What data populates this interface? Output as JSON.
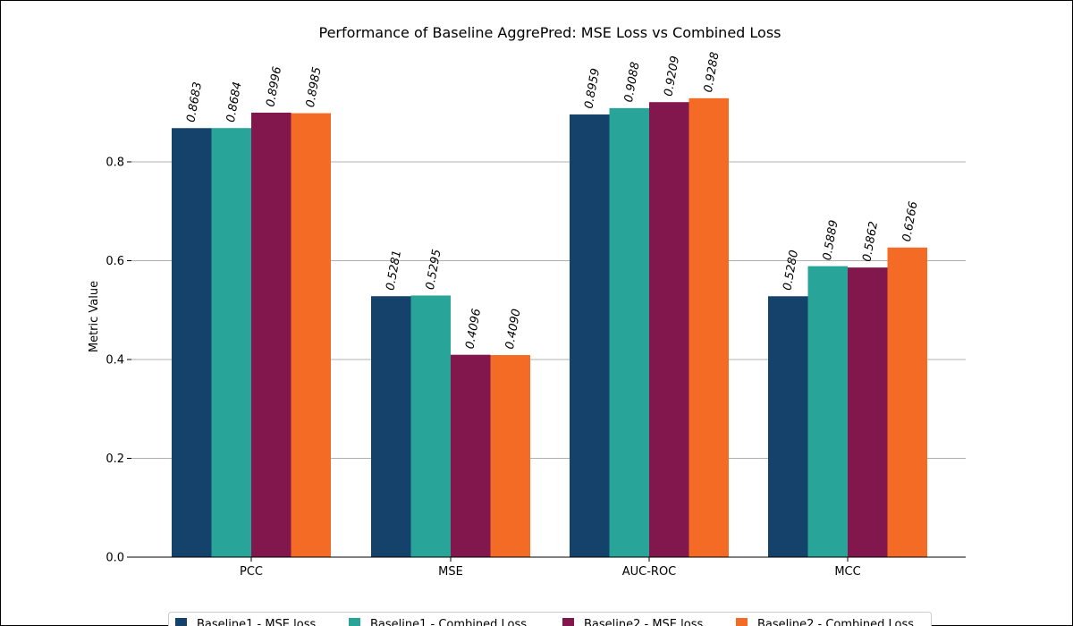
{
  "chart_data": {
    "type": "bar",
    "title": "Performance of Baseline AggrePred: MSE Loss vs Combined Loss",
    "xlabel": "",
    "ylabel": "Metric Value",
    "categories": [
      "PCC",
      "MSE",
      "AUC-ROC",
      "MCC"
    ],
    "ylim": [
      0,
      0.9
    ],
    "yticks": [
      0.0,
      0.2,
      0.4,
      0.6,
      0.8
    ],
    "grid": "y",
    "legend_position": "bottom-center",
    "series": [
      {
        "name": "Baseline1 - MSE loss",
        "color": "#14426b",
        "values": [
          0.8683,
          0.5281,
          0.8959,
          0.528
        ],
        "labels": [
          "0.8683",
          "0.5281",
          "0.8959",
          "0.5280"
        ]
      },
      {
        "name": "Baseline1 - Combined Loss",
        "color": "#28a498",
        "values": [
          0.8684,
          0.5295,
          0.9088,
          0.5889
        ],
        "labels": [
          "0.8684",
          "0.5295",
          "0.9088",
          "0.5889"
        ]
      },
      {
        "name": "Baseline2 - MSE loss",
        "color": "#82174d",
        "values": [
          0.8996,
          0.4096,
          0.9209,
          0.5862
        ],
        "labels": [
          "0.8996",
          "0.4096",
          "0.9209",
          "0.5862"
        ]
      },
      {
        "name": "Baseline2 - Combined Loss",
        "color": "#f46b25",
        "values": [
          0.8985,
          0.409,
          0.9288,
          0.6266
        ],
        "labels": [
          "0.8985",
          "0.4090",
          "0.9288",
          "0.6266"
        ]
      }
    ]
  }
}
